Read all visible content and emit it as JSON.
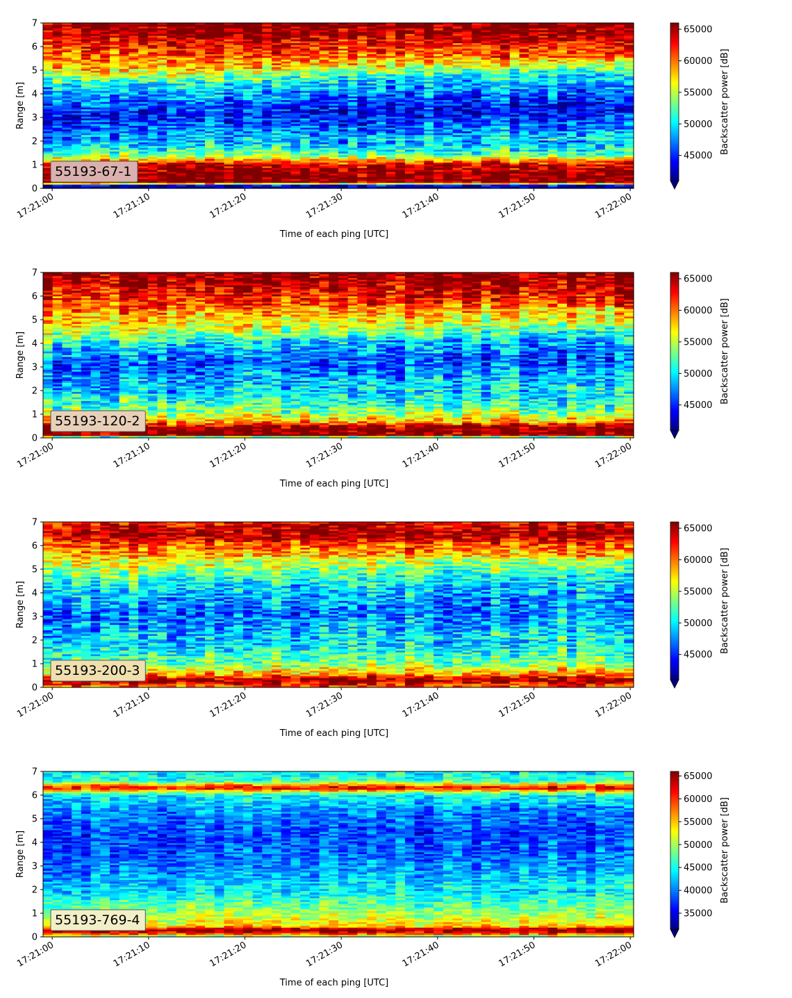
{
  "chart_data": [
    {
      "type": "heatmap",
      "label": "55193-67-1",
      "label_bg": "#dbb1b0",
      "xlabel": "Time of each ping [UTC]",
      "ylabel": "Range [m]",
      "x_range": [
        "17:21:00",
        "17:22:00"
      ],
      "x_ticks": [
        "17:21:00",
        "17:21:10",
        "17:21:20",
        "17:21:30",
        "17:21:40",
        "17:21:50",
        "17:22:00"
      ],
      "ylim": [
        0,
        7
      ],
      "y_ticks": [
        "0",
        "1",
        "2",
        "3",
        "4",
        "5",
        "6",
        "7"
      ],
      "colorbar_label": "Backscatter power [dB]",
      "colorbar_range": [
        41000,
        66000
      ],
      "colorbar_ticks": [
        "45000",
        "50000",
        "55000",
        "60000",
        "65000"
      ],
      "colorbar_extend": "min",
      "colormap": "jet",
      "profile": [
        {
          "range": 7.0,
          "value": 66000
        },
        {
          "range": 6.6,
          "value": 65500
        },
        {
          "range": 6.0,
          "value": 62000
        },
        {
          "range": 5.0,
          "value": 58000
        },
        {
          "range": 4.3,
          "value": 50000
        },
        {
          "range": 3.0,
          "value": 44000
        },
        {
          "range": 2.0,
          "value": 48000
        },
        {
          "range": 1.4,
          "value": 53000
        },
        {
          "range": 1.0,
          "value": 64000
        },
        {
          "range": 0.6,
          "value": 66000
        },
        {
          "range": 0.25,
          "value": 66000
        },
        {
          "range": 0.1,
          "value": 41000
        },
        {
          "range": 0.0,
          "value": 41000
        }
      ]
    },
    {
      "type": "heatmap",
      "label": "55193-120-2",
      "label_bg": "#e8d0b8",
      "xlabel": "Time of each ping [UTC]",
      "ylabel": "Range [m]",
      "x_range": [
        "17:21:00",
        "17:22:00"
      ],
      "x_ticks": [
        "17:21:00",
        "17:21:10",
        "17:21:20",
        "17:21:30",
        "17:21:40",
        "17:21:50",
        "17:22:00"
      ],
      "ylim": [
        0,
        7
      ],
      "y_ticks": [
        "0",
        "1",
        "2",
        "3",
        "4",
        "5",
        "6",
        "7"
      ],
      "colorbar_label": "Backscatter power [dB]",
      "colorbar_range": [
        41000,
        66000
      ],
      "colorbar_ticks": [
        "45000",
        "50000",
        "55000",
        "60000",
        "65000"
      ],
      "colorbar_extend": "min",
      "colormap": "jet",
      "profile": [
        {
          "range": 7.0,
          "value": 65500
        },
        {
          "range": 6.5,
          "value": 64500
        },
        {
          "range": 5.5,
          "value": 60500
        },
        {
          "range": 4.5,
          "value": 56000
        },
        {
          "range": 3.8,
          "value": 49500
        },
        {
          "range": 3.0,
          "value": 46000
        },
        {
          "range": 2.0,
          "value": 49000
        },
        {
          "range": 1.2,
          "value": 53000
        },
        {
          "range": 0.7,
          "value": 58000
        },
        {
          "range": 0.45,
          "value": 66000
        },
        {
          "range": 0.1,
          "value": 66000
        },
        {
          "range": 0.0,
          "value": 45000
        }
      ]
    },
    {
      "type": "heatmap",
      "label": "55193-200-3",
      "label_bg": "#f0e0b0",
      "xlabel": "Time of each ping [UTC]",
      "ylabel": "Range [m]",
      "x_range": [
        "17:21:00",
        "17:22:00"
      ],
      "x_ticks": [
        "17:21:00",
        "17:21:10",
        "17:21:20",
        "17:21:30",
        "17:21:40",
        "17:21:50",
        "17:22:00"
      ],
      "ylim": [
        0,
        7
      ],
      "y_ticks": [
        "0",
        "1",
        "2",
        "3",
        "4",
        "5",
        "6",
        "7"
      ],
      "colorbar_label": "Backscatter power [dB]",
      "colorbar_range": [
        41000,
        66000
      ],
      "colorbar_ticks": [
        "45000",
        "50000",
        "55000",
        "60000",
        "65000"
      ],
      "colorbar_extend": "min",
      "colormap": "jet",
      "profile": [
        {
          "range": 7.0,
          "value": 63000
        },
        {
          "range": 6.5,
          "value": 65500
        },
        {
          "range": 6.0,
          "value": 61000
        },
        {
          "range": 5.0,
          "value": 55000
        },
        {
          "range": 4.0,
          "value": 49500
        },
        {
          "range": 3.0,
          "value": 47000
        },
        {
          "range": 2.0,
          "value": 49500
        },
        {
          "range": 1.0,
          "value": 53500
        },
        {
          "range": 0.55,
          "value": 59000
        },
        {
          "range": 0.3,
          "value": 66000
        },
        {
          "range": 0.0,
          "value": 60000
        }
      ]
    },
    {
      "type": "heatmap",
      "label": "55193-769-4",
      "label_bg": "#f2efc8",
      "xlabel": "Time of each ping [UTC]",
      "ylabel": "Range [m]",
      "x_range": [
        "17:21:00",
        "17:22:00"
      ],
      "x_ticks": [
        "17:21:00",
        "17:21:10",
        "17:21:20",
        "17:21:30",
        "17:21:40",
        "17:21:50",
        "17:22:00"
      ],
      "ylim": [
        0,
        7
      ],
      "y_ticks": [
        "0",
        "1",
        "2",
        "3",
        "4",
        "5",
        "6",
        "7"
      ],
      "colorbar_label": "Backscatter power [dB]",
      "colorbar_range": [
        31500,
        66000
      ],
      "colorbar_ticks": [
        "35000",
        "40000",
        "45000",
        "50000",
        "55000",
        "60000",
        "65000"
      ],
      "colorbar_extend": "min",
      "colormap": "jet",
      "profile": [
        {
          "range": 7.0,
          "value": 44000
        },
        {
          "range": 6.6,
          "value": 46000
        },
        {
          "range": 6.3,
          "value": 63000
        },
        {
          "range": 6.0,
          "value": 44000
        },
        {
          "range": 5.0,
          "value": 40000
        },
        {
          "range": 4.0,
          "value": 38000
        },
        {
          "range": 3.0,
          "value": 39500
        },
        {
          "range": 2.0,
          "value": 43000
        },
        {
          "range": 1.0,
          "value": 50000
        },
        {
          "range": 0.45,
          "value": 54000
        },
        {
          "range": 0.3,
          "value": 66000
        },
        {
          "range": 0.15,
          "value": 62000
        },
        {
          "range": 0.0,
          "value": 47000
        }
      ]
    }
  ]
}
